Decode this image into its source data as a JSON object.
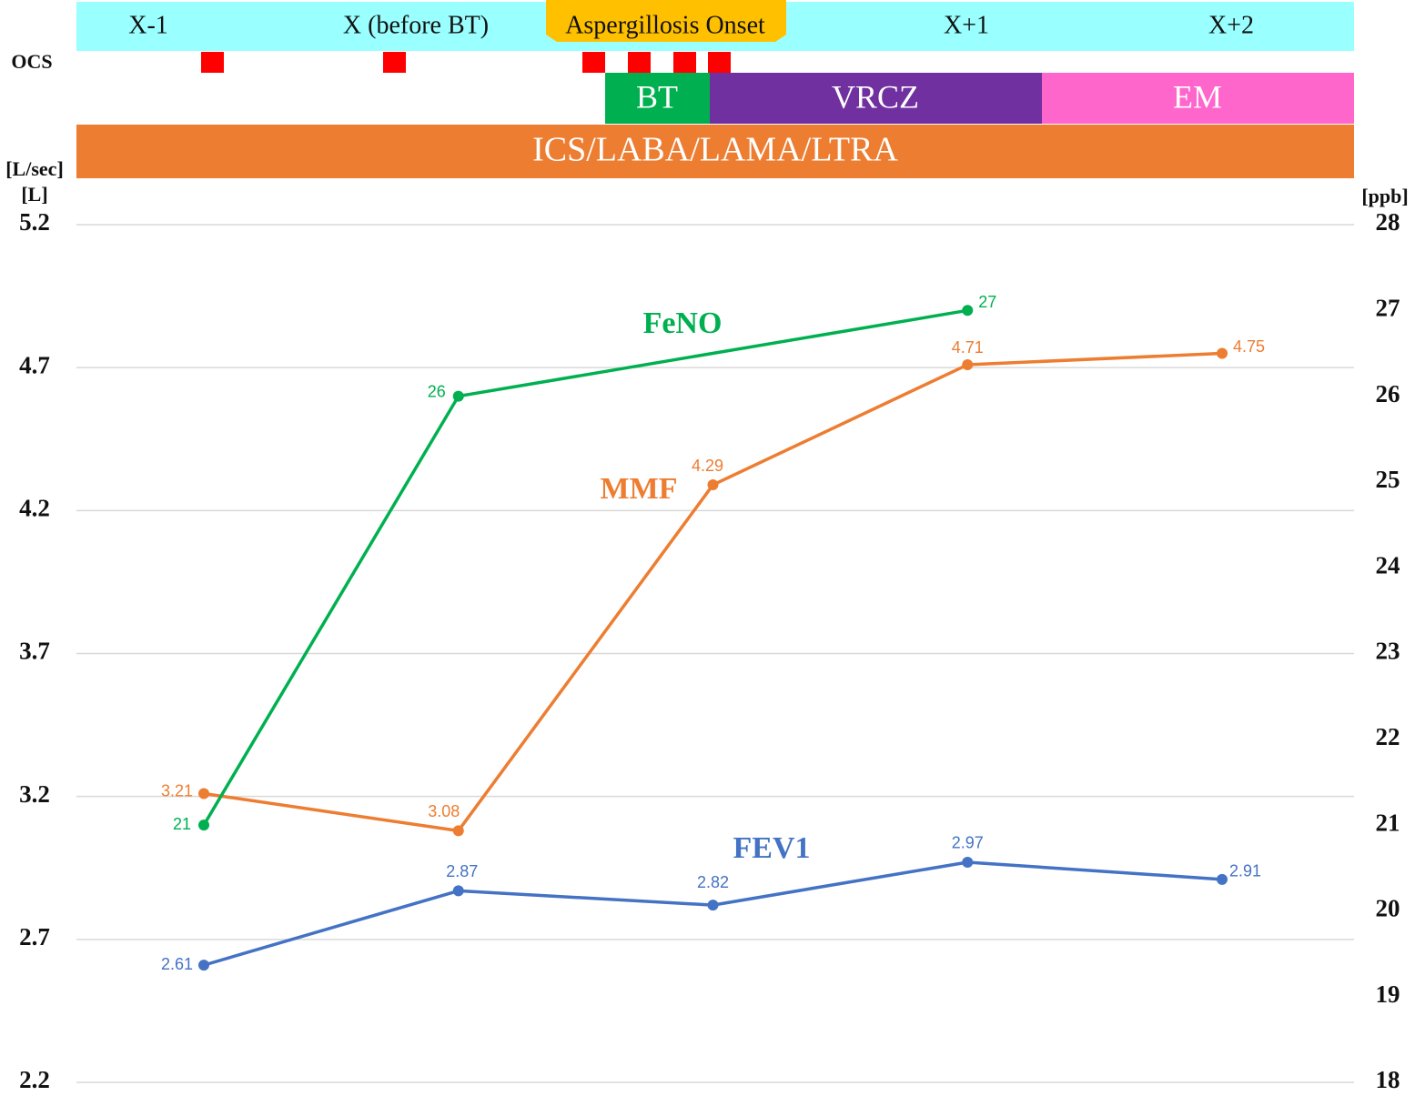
{
  "chart_data": {
    "type": "line",
    "categories": [
      "X-1",
      "X (before BT)",
      "Aspergillosis Onset",
      "X+1",
      "X+2"
    ],
    "series": [
      {
        "name": "FEV1",
        "color": "#4472c4",
        "values": [
          2.61,
          2.87,
          2.82,
          2.97,
          2.91
        ]
      },
      {
        "name": "MMF",
        "color": "#ed7d31",
        "values": [
          3.21,
          3.08,
          4.29,
          4.71,
          4.75
        ]
      },
      {
        "name": "FeNO",
        "color": "#00b050",
        "axis": "y2",
        "values": [
          21,
          26,
          null,
          27,
          null
        ]
      }
    ],
    "y_label": "[L/sec]",
    "y_label_2": "[L]",
    "y2_label": "[ppb]",
    "ylim": [
      2.2,
      5.2
    ],
    "yticks": [
      2.2,
      2.7,
      3.2,
      3.7,
      4.2,
      4.7,
      5.2
    ],
    "y2lim": [
      18,
      28
    ],
    "y2ticks": [
      18,
      19,
      20,
      21,
      22,
      23,
      24,
      25,
      26,
      27,
      28
    ],
    "grid": true,
    "timeline": {
      "ocs_label": "OCS",
      "treatments": [
        "BT",
        "VRCZ",
        "EM"
      ],
      "maintenance": "ICS/LABA/LAMA/LTRA"
    }
  }
}
